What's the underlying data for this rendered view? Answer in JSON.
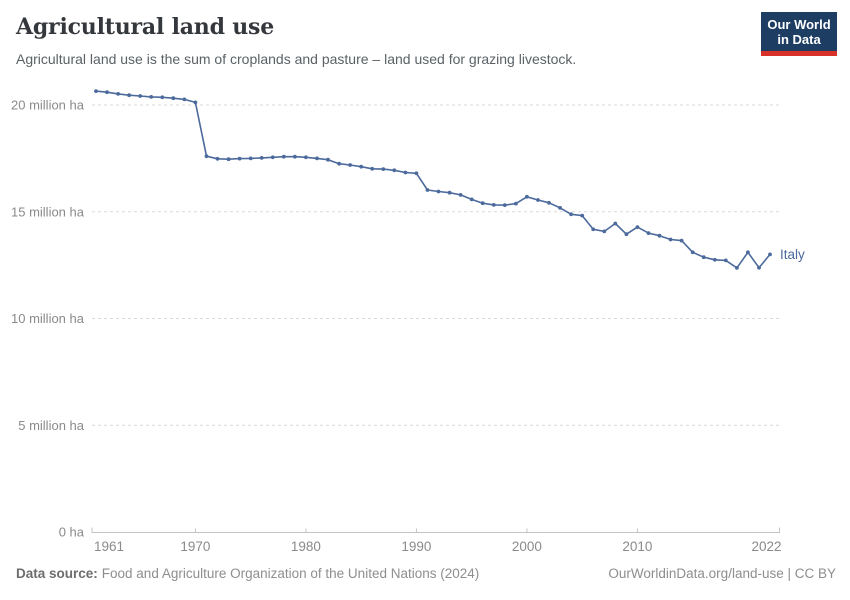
{
  "header": {
    "title": "Agricultural land use",
    "subtitle": "Agricultural land use is the sum of croplands and pasture – land used for grazing livestock.",
    "logo": {
      "line1": "Our World",
      "line2": "in Data",
      "bg_color": "#1d3d63",
      "accent_color": "#d7312a"
    }
  },
  "chart_data": {
    "type": "line",
    "title": "Agricultural land use",
    "unit": "million ha",
    "xlim": [
      1961,
      2022
    ],
    "ylim": [
      0,
      21.6
    ],
    "grid": "dashed-horizontal",
    "legend_position": "end-of-line-label",
    "x_ticks": [
      1961,
      1970,
      1980,
      1990,
      2000,
      2010,
      2022
    ],
    "y_ticks": [
      {
        "value": 0,
        "label": "0 ha"
      },
      {
        "value": 5,
        "label": "5 million ha"
      },
      {
        "value": 10,
        "label": "10 million ha"
      },
      {
        "value": 15,
        "label": "15 million ha"
      },
      {
        "value": 20,
        "label": "20 million ha"
      }
    ],
    "series": [
      {
        "name": "Italy",
        "color": "#4c6a9c",
        "x": [
          1961,
          1962,
          1963,
          1964,
          1965,
          1966,
          1967,
          1968,
          1969,
          1970,
          1971,
          1972,
          1973,
          1974,
          1975,
          1976,
          1977,
          1978,
          1979,
          1980,
          1981,
          1982,
          1983,
          1984,
          1985,
          1986,
          1987,
          1988,
          1989,
          1990,
          1991,
          1992,
          1993,
          1994,
          1995,
          1996,
          1997,
          1998,
          1999,
          2000,
          2001,
          2002,
          2003,
          2004,
          2005,
          2006,
          2007,
          2008,
          2009,
          2010,
          2011,
          2012,
          2013,
          2014,
          2015,
          2016,
          2017,
          2018,
          2019,
          2020,
          2021,
          2022
        ],
        "values": [
          20.65,
          20.6,
          20.52,
          20.46,
          20.42,
          20.38,
          20.36,
          20.32,
          20.26,
          20.12,
          17.6,
          17.48,
          17.46,
          17.49,
          17.5,
          17.52,
          17.55,
          17.58,
          17.58,
          17.55,
          17.5,
          17.44,
          17.25,
          17.19,
          17.11,
          17.01,
          17.0,
          16.94,
          16.84,
          16.8,
          16.02,
          15.95,
          15.89,
          15.79,
          15.58,
          15.4,
          15.32,
          15.31,
          15.38,
          15.7,
          15.55,
          15.42,
          15.18,
          14.88,
          14.82,
          14.18,
          14.08,
          14.45,
          13.95,
          14.28,
          14.0,
          13.88,
          13.7,
          13.65,
          13.1,
          12.87,
          12.75,
          12.72,
          12.37,
          13.1,
          12.38,
          13.0
        ]
      }
    ]
  },
  "footer": {
    "source_label": "Data source:",
    "source_text": "Food and Agriculture Organization of the United Nations (2024)",
    "rights": "OurWorldinData.org/land-use | CC BY"
  }
}
